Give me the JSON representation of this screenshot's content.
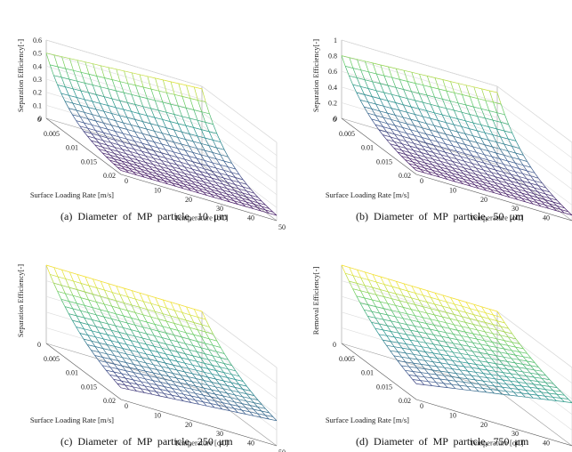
{
  "chart_data": [
    {
      "type": "surface",
      "panel": "a",
      "caption": "(a)  Diameter  of  MP  particle,  10  μm",
      "zlabel": "Separation Efficiency[-]",
      "xlabel": "Temperature [oC]",
      "ylabel": "Surface Loading Rate [m/s]",
      "zlim": [
        0,
        0.6
      ],
      "z_ticks": [
        "0",
        "0.1",
        "0.2",
        "0.3",
        "0.4",
        "0.5",
        "0.6"
      ],
      "x_ticks": [
        "0",
        "10",
        "20",
        "30",
        "40",
        "50"
      ],
      "y_ticks": [
        "0",
        "0.005",
        "0.01",
        "0.015",
        "0.02"
      ],
      "x_range": [
        0,
        50
      ],
      "y_range": [
        0,
        0.02
      ],
      "z_corners": {
        "min_rate_min_temp": 0.5,
        "min_rate_max_temp": 0.58,
        "max_rate_min_temp": 0.03,
        "max_rate_max_temp": 0.04
      },
      "decay_shape": 3.0
    },
    {
      "type": "surface",
      "panel": "b",
      "caption": "(b)  Diameter  of  MP  particle,  50  μm",
      "zlabel": "Separation Efficiency[-]",
      "xlabel": "Temperature [oC]",
      "ylabel": "Surface Loading Rate [m/s]",
      "zlim": [
        0,
        1
      ],
      "z_ticks": [
        "0",
        "0.2",
        "0.4",
        "0.6",
        "0.8",
        "1"
      ],
      "x_ticks": [
        "0",
        "10",
        "20",
        "30",
        "40",
        "50"
      ],
      "y_ticks": [
        "0",
        "0.005",
        "0.01",
        "0.015",
        "0.02"
      ],
      "x_range": [
        0,
        50
      ],
      "y_range": [
        0,
        0.02
      ],
      "z_corners": {
        "min_rate_min_temp": 0.8,
        "min_rate_max_temp": 0.92,
        "max_rate_min_temp": 0.05,
        "max_rate_max_temp": 0.07
      },
      "decay_shape": 2.6
    },
    {
      "type": "surface",
      "panel": "c",
      "caption": "(c)  Diameter  of  MP  particle,  250  μm",
      "zlabel": "Separation Efficiency[-]",
      "xlabel": "Temperature [oC]",
      "ylabel": "Surface Loading Rate [m/s]",
      "zlim": [
        0,
        1
      ],
      "z_ticks": [],
      "x_ticks": [
        "0",
        "10",
        "20",
        "30",
        "40",
        "50"
      ],
      "y_ticks": [
        "0",
        "0.005",
        "0.01",
        "0.015",
        "0.02"
      ],
      "x_range": [
        0,
        50
      ],
      "y_range": [
        0,
        0.02
      ],
      "z_corners": {
        "min_rate_min_temp": 1.0,
        "min_rate_max_temp": 1.0,
        "max_rate_min_temp": 0.15,
        "max_rate_max_temp": 0.32
      },
      "decay_shape": 1.6
    },
    {
      "type": "surface",
      "panel": "d",
      "caption": "(d)  Diameter  of  MP  particle,  750  μm",
      "zlabel": "Removal Efficiency[-]",
      "xlabel": "Temperature [oC]",
      "ylabel": "Surface Loading Rate [m/s]",
      "zlim": [
        0,
        1
      ],
      "z_ticks": [],
      "x_ticks": [
        "0",
        "10",
        "20",
        "30",
        "40",
        "50"
      ],
      "y_ticks": [
        "0",
        "0.005",
        "0.01",
        "0.015",
        "0.02"
      ],
      "x_range": [
        0,
        50
      ],
      "y_range": [
        0,
        0.02
      ],
      "z_corners": {
        "min_rate_min_temp": 1.0,
        "min_rate_max_temp": 1.0,
        "max_rate_min_temp": 0.2,
        "max_rate_max_temp": 0.55
      },
      "decay_shape": 1.3
    }
  ],
  "colormap": [
    "#440154",
    "#3b528b",
    "#21918c",
    "#5ec962",
    "#fde725"
  ]
}
